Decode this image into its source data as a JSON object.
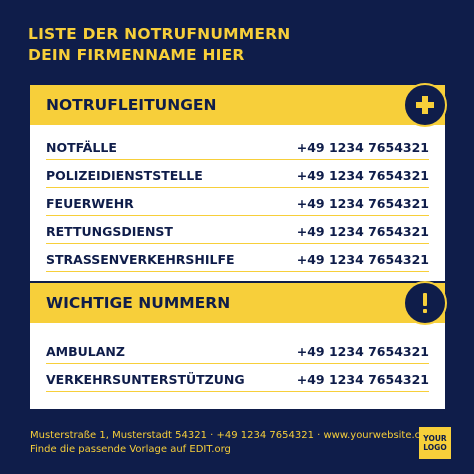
{
  "title": {
    "line1": "LISTE DER NOTRUFNUMMERN",
    "line2": "DEIN FIRMENNAME HIER"
  },
  "sections": [
    {
      "heading": "NOTRUFLEITUNGEN",
      "icon": "plus-icon",
      "rows": [
        {
          "label": "NOTFÄLLE",
          "phone": "+49 1234 7654321"
        },
        {
          "label": "POLIZEIDIENSTSTELLE",
          "phone": "+49 1234 7654321"
        },
        {
          "label": "FEUERWEHR",
          "phone": "+49 1234 7654321"
        },
        {
          "label": "RETTUNGSDIENST",
          "phone": "+49 1234 7654321"
        },
        {
          "label": "STRASSENVERKEHRSHILFE",
          "phone": "+49 1234 7654321"
        }
      ]
    },
    {
      "heading": "WICHTIGE NUMMERN",
      "icon": "exclamation-icon",
      "rows": [
        {
          "label": "AMBULANZ",
          "phone": "+49 1234 7654321"
        },
        {
          "label": "VERKEHRSUNTERSTÜTZUNG",
          "phone": "+49 1234 7654321"
        }
      ]
    }
  ],
  "footer": {
    "line1": "Musterstraße 1, Musterstadt 54321 · +49 1234 7654321 · www.yourwebsite.com",
    "line2": "Finde die passende Vorlage auf EDIT.org"
  },
  "logo": {
    "line1": "YOUR",
    "line2": "LOGO"
  },
  "colors": {
    "navy": "#0f1d4a",
    "yellow": "#f7cf3a",
    "white": "#ffffff"
  }
}
